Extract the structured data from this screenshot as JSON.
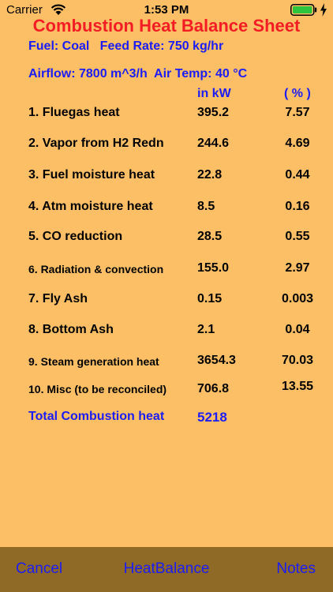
{
  "status_bar": {
    "carrier": "Carrier",
    "time": "1:53 PM"
  },
  "title": "Combustion Heat Balance Sheet",
  "info": {
    "line1": "Fuel: Coal   Feed Rate: 750 kg/hr",
    "line2": "Airflow: 7800 m^3/h  Air Temp: 40 °C"
  },
  "columns": {
    "kw": "in kW",
    "pct": "( % )"
  },
  "rows": [
    {
      "label": "1. Fluegas heat",
      "kw": "395.2",
      "pct": "7.57"
    },
    {
      "label": "2. Vapor from H2 Redn",
      "kw": "244.6",
      "pct": "4.69"
    },
    {
      "label": "3. Fuel moisture heat",
      "kw": "22.8",
      "pct": "0.44"
    },
    {
      "label": "4. Atm moisture heat",
      "kw": "8.5",
      "pct": "0.16"
    },
    {
      "label": "5. CO reduction",
      "kw": "28.5",
      "pct": "0.55"
    },
    {
      "label": "6. Radiation & convection",
      "kw": "155.0",
      "pct": "2.97"
    },
    {
      "label": "7. Fly Ash",
      "kw": "0.15",
      "pct": "0.003"
    },
    {
      "label": "8. Bottom Ash",
      "kw": "2.1",
      "pct": "0.04"
    },
    {
      "label": "9. Steam generation heat",
      "kw": "3654.3",
      "pct": "70.03"
    },
    {
      "label": "10. Misc (to be reconciled)",
      "kw": "706.8",
      "pct": "13.55"
    }
  ],
  "total": {
    "label": "Total Combustion heat",
    "value": "5218"
  },
  "toolbar": {
    "cancel": "Cancel",
    "heatbalance": "HeatBalance",
    "notes": "Notes"
  },
  "colors": {
    "background": "#FDBF66",
    "title": "#F51D24",
    "accent": "#1C1CF4",
    "toolbar": "#8E6A26"
  }
}
